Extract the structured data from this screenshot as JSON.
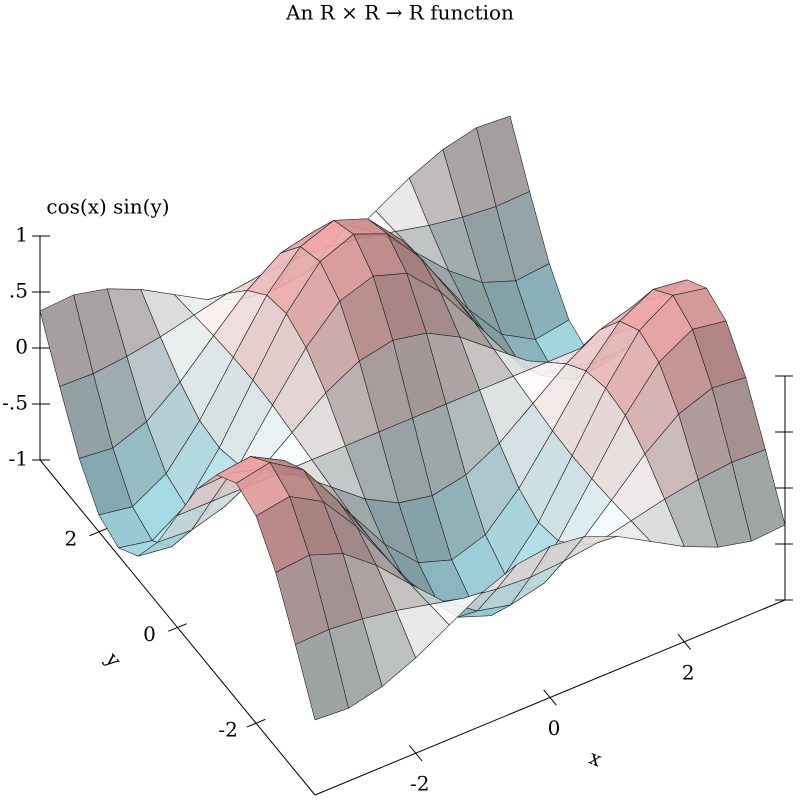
{
  "chart_data": {
    "type": "surface3d",
    "title": "An R × R → R function",
    "x_label": "x",
    "y_label": "y",
    "z_label": "cos(x) sin(y)",
    "x": [
      -3.5,
      -3,
      -2.5,
      -2,
      -1.5,
      -1,
      -0.5,
      0,
      0.5,
      1,
      1.5,
      2,
      2.5,
      3,
      3.5
    ],
    "y": [
      -3.5,
      -3,
      -2.5,
      -2,
      -1.5,
      -1,
      -0.5,
      0,
      0.5,
      1,
      1.5,
      2,
      2.5,
      3,
      3.5
    ],
    "z": [
      [
        -0.33,
        -0.35,
        -0.28,
        -0.15,
        0.02,
        0.19,
        0.31,
        0.35,
        0.31,
        0.19,
        0.02,
        -0.15,
        -0.28,
        -0.35,
        -0.33
      ],
      [
        0.13,
        0.14,
        0.11,
        0.06,
        -0.01,
        -0.08,
        -0.12,
        -0.14,
        -0.12,
        -0.08,
        -0.01,
        0.06,
        0.11,
        0.14,
        0.13
      ],
      [
        0.56,
        0.59,
        0.48,
        0.25,
        -0.04,
        -0.32,
        -0.53,
        -0.6,
        -0.53,
        -0.32,
        -0.04,
        0.25,
        0.48,
        0.59,
        0.56
      ],
      [
        0.85,
        0.9,
        0.73,
        0.38,
        -0.06,
        -0.49,
        -0.8,
        -0.91,
        -0.8,
        -0.49,
        -0.06,
        0.38,
        0.73,
        0.9,
        0.85
      ],
      [
        0.93,
        0.99,
        0.8,
        0.41,
        -0.07,
        -0.54,
        -0.88,
        -1,
        -0.88,
        -0.54,
        -0.07,
        0.41,
        0.8,
        0.99,
        0.93
      ],
      [
        0.79,
        0.83,
        0.67,
        0.35,
        -0.06,
        -0.45,
        -0.74,
        -0.84,
        -0.74,
        -0.45,
        -0.06,
        0.35,
        0.67,
        0.83,
        0.79
      ],
      [
        0.45,
        0.47,
        0.38,
        0.2,
        -0.03,
        -0.26,
        -0.42,
        -0.48,
        -0.42,
        -0.26,
        -0.03,
        0.2,
        0.38,
        0.47,
        0.45
      ],
      [
        0,
        0,
        0,
        0,
        0,
        0,
        0,
        0,
        0,
        0,
        0,
        0,
        0,
        0,
        0
      ],
      [
        -0.45,
        -0.47,
        -0.38,
        -0.2,
        0.03,
        0.26,
        0.42,
        0.48,
        0.42,
        0.26,
        0.03,
        -0.2,
        -0.38,
        -0.47,
        -0.45
      ],
      [
        -0.79,
        -0.83,
        -0.67,
        -0.35,
        0.06,
        0.45,
        0.74,
        0.84,
        0.74,
        0.45,
        0.06,
        -0.35,
        -0.67,
        -0.83,
        -0.79
      ],
      [
        -0.93,
        -0.99,
        -0.8,
        -0.41,
        0.07,
        0.54,
        0.88,
        1,
        0.88,
        0.54,
        0.07,
        -0.41,
        -0.8,
        -0.99,
        -0.93
      ],
      [
        -0.85,
        -0.9,
        -0.73,
        -0.38,
        0.06,
        0.49,
        0.8,
        0.91,
        0.8,
        0.49,
        0.06,
        -0.38,
        -0.73,
        -0.9,
        -0.85
      ],
      [
        -0.56,
        -0.59,
        -0.48,
        -0.25,
        0.04,
        0.32,
        0.53,
        0.6,
        0.53,
        0.32,
        0.04,
        -0.25,
        -0.48,
        -0.59,
        -0.56
      ],
      [
        -0.13,
        -0.14,
        -0.11,
        -0.06,
        0.01,
        0.08,
        0.12,
        0.14,
        0.12,
        0.08,
        0.01,
        -0.06,
        -0.11,
        -0.14,
        -0.13
      ],
      [
        0.33,
        0.35,
        0.28,
        0.15,
        -0.02,
        -0.19,
        -0.31,
        -0.35,
        -0.31,
        -0.19,
        -0.02,
        0.15,
        0.28,
        0.35,
        0.33
      ]
    ],
    "xlim": [
      -3.5,
      3.5
    ],
    "ylim": [
      -3.5,
      3.5
    ],
    "zlim": [
      -1,
      1
    ],
    "xticks": [
      -2,
      0,
      2
    ],
    "yticks": [
      -2,
      0,
      2
    ],
    "zticks": [
      -1,
      {
        "value": -0.5,
        "label": "-.5"
      },
      0,
      {
        "value": 0.5,
        "label": ".5"
      },
      1
    ],
    "positive_color": "#f2a6a6",
    "negative_color": "#a6e4f0"
  }
}
